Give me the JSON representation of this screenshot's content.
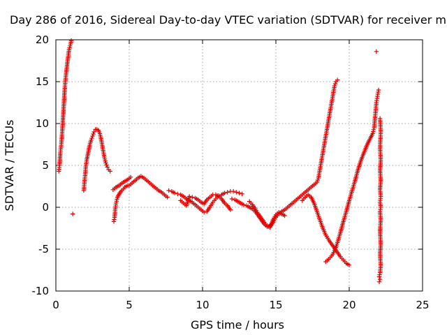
{
  "chart_data": {
    "type": "scatter",
    "title": "Day 286 of 2016, Sidereal Day-to-day VTEC variation (SDTVAR) for receiver m",
    "xlabel": "GPS time / hours",
    "ylabel": "SDTVAR / TECUs",
    "xlim": [
      0,
      25
    ],
    "ylim": [
      -10,
      20
    ],
    "xticks": [
      "0",
      "5",
      "10",
      "15",
      "20",
      "25"
    ],
    "yticks": [
      "-10",
      "-5",
      "0",
      "5",
      "10",
      "15",
      "20"
    ],
    "grid": true,
    "marker": "plus",
    "marker_color": "#e00000",
    "series": [
      {
        "points": [
          [
            0.2,
            4.3
          ],
          [
            0.25,
            5.0
          ],
          [
            0.3,
            6.5
          ],
          [
            0.35,
            7.2
          ],
          [
            0.4,
            8.2
          ],
          [
            0.45,
            9.5
          ],
          [
            0.5,
            11.0
          ],
          [
            0.55,
            12.5
          ],
          [
            0.6,
            14.0
          ],
          [
            0.65,
            15.2
          ],
          [
            0.7,
            16.0
          ],
          [
            0.8,
            17.5
          ],
          [
            0.9,
            18.8
          ],
          [
            1.0,
            19.5
          ],
          [
            1.05,
            19.9
          ]
        ]
      },
      {
        "points": [
          [
            1.15,
            -0.8
          ]
        ]
      },
      {
        "points": [
          [
            1.9,
            2.0
          ],
          [
            1.95,
            3.0
          ],
          [
            2.0,
            4.0
          ],
          [
            2.05,
            5.0
          ],
          [
            2.1,
            5.6
          ],
          [
            2.2,
            6.5
          ],
          [
            2.3,
            7.4
          ],
          [
            2.4,
            8.0
          ],
          [
            2.5,
            8.5
          ],
          [
            2.6,
            9.0
          ],
          [
            2.7,
            9.3
          ],
          [
            2.8,
            9.3
          ],
          [
            2.9,
            9.2
          ],
          [
            3.0,
            8.8
          ],
          [
            3.1,
            8.0
          ],
          [
            3.2,
            7.0
          ],
          [
            3.3,
            6.0
          ],
          [
            3.4,
            5.3
          ],
          [
            3.5,
            4.8
          ],
          [
            3.6,
            4.5
          ],
          [
            3.7,
            4.3
          ]
        ]
      },
      {
        "points": [
          [
            3.95,
            -1.7
          ],
          [
            4.0,
            -1.2
          ],
          [
            4.05,
            -0.2
          ],
          [
            4.1,
            0.5
          ],
          [
            4.2,
            1.2
          ],
          [
            4.35,
            1.7
          ],
          [
            4.5,
            2.0
          ],
          [
            4.7,
            2.4
          ],
          [
            4.9,
            2.6
          ],
          [
            5.0,
            2.6
          ],
          [
            5.2,
            2.9
          ],
          [
            5.4,
            3.2
          ],
          [
            5.6,
            3.5
          ],
          [
            5.8,
            3.7
          ],
          [
            6.0,
            3.5
          ],
          [
            6.2,
            3.2
          ],
          [
            6.4,
            2.9
          ],
          [
            6.6,
            2.6
          ],
          [
            6.8,
            2.3
          ],
          [
            7.0,
            2.0
          ],
          [
            7.2,
            1.8
          ],
          [
            7.4,
            1.5
          ],
          [
            7.6,
            1.2
          ]
        ]
      },
      {
        "points": [
          [
            3.9,
            2.1
          ],
          [
            4.1,
            2.4
          ],
          [
            4.3,
            2.6
          ],
          [
            4.6,
            3.0
          ],
          [
            4.9,
            3.3
          ],
          [
            5.1,
            3.6
          ]
        ]
      },
      {
        "points": [
          [
            7.7,
            2.0
          ],
          [
            7.9,
            1.9
          ],
          [
            8.1,
            1.7
          ],
          [
            8.3,
            1.6
          ],
          [
            8.5,
            1.5
          ],
          [
            8.7,
            1.3
          ],
          [
            8.9,
            1.0
          ],
          [
            9.1,
            0.8
          ],
          [
            9.3,
            0.6
          ],
          [
            9.5,
            0.3
          ],
          [
            9.7,
            0.0
          ],
          [
            9.9,
            -0.3
          ],
          [
            10.1,
            -0.6
          ],
          [
            10.3,
            -0.5
          ],
          [
            10.5,
            0.0
          ],
          [
            10.7,
            0.6
          ],
          [
            10.9,
            1.0
          ],
          [
            11.1,
            1.4
          ],
          [
            11.3,
            1.5
          ],
          [
            11.5,
            1.7
          ],
          [
            11.7,
            1.8
          ],
          [
            11.9,
            1.9
          ],
          [
            12.1,
            1.9
          ],
          [
            12.3,
            1.8
          ],
          [
            12.5,
            1.7
          ],
          [
            12.7,
            1.6
          ]
        ]
      },
      {
        "points": [
          [
            8.5,
            0.8
          ],
          [
            8.7,
            0.5
          ],
          [
            8.9,
            0.2
          ],
          [
            9.1,
            1.3
          ],
          [
            9.3,
            1.2
          ],
          [
            9.5,
            1.1
          ],
          [
            9.7,
            0.9
          ],
          [
            9.9,
            0.6
          ],
          [
            10.1,
            0.4
          ],
          [
            10.3,
            0.9
          ],
          [
            10.5,
            1.2
          ],
          [
            10.7,
            1.5
          ],
          [
            10.9,
            1.5
          ],
          [
            11.1,
            1.3
          ],
          [
            11.3,
            1.0
          ],
          [
            11.5,
            0.5
          ],
          [
            11.7,
            0.2
          ],
          [
            11.9,
            -0.3
          ]
        ]
      },
      {
        "points": [
          [
            12.0,
            1.0
          ],
          [
            12.2,
            0.9
          ],
          [
            12.4,
            0.7
          ],
          [
            12.6,
            0.5
          ],
          [
            12.8,
            0.3
          ],
          [
            13.0,
            0.2
          ],
          [
            13.2,
            0.0
          ],
          [
            13.4,
            -0.2
          ],
          [
            13.6,
            -0.5
          ],
          [
            13.8,
            -1.0
          ],
          [
            14.0,
            -1.5
          ],
          [
            14.2,
            -2.0
          ],
          [
            14.4,
            -2.3
          ],
          [
            14.6,
            -2.3
          ],
          [
            14.8,
            -1.8
          ],
          [
            15.0,
            -1.2
          ],
          [
            15.2,
            -0.8
          ],
          [
            15.4,
            -0.5
          ],
          [
            15.6,
            -0.3
          ],
          [
            15.8,
            0.0
          ],
          [
            16.0,
            0.3
          ],
          [
            16.2,
            0.6
          ],
          [
            16.4,
            0.9
          ],
          [
            16.6,
            1.2
          ],
          [
            16.8,
            1.5
          ],
          [
            17.0,
            1.8
          ],
          [
            17.2,
            2.1
          ],
          [
            17.4,
            2.4
          ],
          [
            17.6,
            2.7
          ],
          [
            17.8,
            3.0
          ],
          [
            17.9,
            3.5
          ],
          [
            18.0,
            4.5
          ],
          [
            18.1,
            5.5
          ],
          [
            18.2,
            6.5
          ],
          [
            18.3,
            7.5
          ],
          [
            18.4,
            8.5
          ],
          [
            18.5,
            9.5
          ],
          [
            18.6,
            10.5
          ],
          [
            18.7,
            11.5
          ],
          [
            18.8,
            12.5
          ],
          [
            18.9,
            13.5
          ],
          [
            19.0,
            14.5
          ],
          [
            19.1,
            15.0
          ],
          [
            19.2,
            15.2
          ]
        ]
      },
      {
        "points": [
          [
            13.2,
            0.7
          ],
          [
            13.4,
            0.3
          ],
          [
            13.6,
            -0.2
          ],
          [
            13.8,
            -0.8
          ],
          [
            14.0,
            -1.3
          ],
          [
            14.2,
            -1.8
          ],
          [
            14.4,
            -2.2
          ],
          [
            14.6,
            -2.4
          ],
          [
            14.8,
            -1.5
          ],
          [
            15.0,
            -0.9
          ],
          [
            15.2,
            -0.6
          ],
          [
            15.4,
            -0.8
          ],
          [
            15.6,
            -1.0
          ]
        ]
      },
      {
        "points": [
          [
            16.8,
            0.8
          ],
          [
            17.0,
            1.2
          ],
          [
            17.2,
            1.5
          ],
          [
            17.4,
            1.2
          ],
          [
            17.6,
            0.5
          ],
          [
            17.8,
            -0.5
          ],
          [
            18.0,
            -1.5
          ],
          [
            18.2,
            -2.5
          ],
          [
            18.4,
            -3.3
          ],
          [
            18.6,
            -3.9
          ],
          [
            18.8,
            -4.4
          ],
          [
            19.0,
            -4.9
          ],
          [
            19.2,
            -5.4
          ],
          [
            19.4,
            -5.9
          ],
          [
            19.6,
            -6.3
          ],
          [
            19.8,
            -6.7
          ],
          [
            20.0,
            -6.9
          ]
        ]
      },
      {
        "points": [
          [
            18.4,
            -6.5
          ],
          [
            18.6,
            -6.2
          ],
          [
            18.8,
            -5.8
          ],
          [
            19.0,
            -5.2
          ],
          [
            19.2,
            -4.2
          ],
          [
            19.4,
            -3.0
          ],
          [
            19.6,
            -1.7
          ],
          [
            19.8,
            -0.5
          ],
          [
            20.0,
            0.8
          ],
          [
            20.2,
            2.0
          ],
          [
            20.4,
            3.2
          ],
          [
            20.6,
            4.5
          ],
          [
            20.8,
            5.6
          ],
          [
            21.0,
            6.5
          ],
          [
            21.2,
            7.4
          ],
          [
            21.4,
            8.1
          ],
          [
            21.6,
            8.8
          ],
          [
            21.7,
            9.5
          ],
          [
            21.75,
            10.5
          ],
          [
            21.8,
            11.5
          ],
          [
            21.85,
            12.5
          ],
          [
            21.9,
            13.0
          ],
          [
            21.95,
            13.5
          ],
          [
            22.0,
            14.0
          ]
        ]
      },
      {
        "points": [
          [
            21.85,
            18.6
          ]
        ]
      },
      {
        "points": [
          [
            22.1,
            10.6
          ],
          [
            22.15,
            9.0
          ],
          [
            22.1,
            7.2
          ],
          [
            22.15,
            5.6
          ],
          [
            22.1,
            4.5
          ],
          [
            22.15,
            3.2
          ],
          [
            22.1,
            2.1
          ],
          [
            22.15,
            1.3
          ],
          [
            22.1,
            0.6
          ],
          [
            22.15,
            0.0
          ],
          [
            22.1,
            -0.5
          ],
          [
            22.15,
            -1.5
          ],
          [
            22.1,
            -2.8
          ],
          [
            22.15,
            -4.5
          ],
          [
            22.1,
            -5.6
          ],
          [
            22.15,
            -7.0
          ],
          [
            22.1,
            -7.8
          ],
          [
            22.05,
            -8.3
          ],
          [
            22.1,
            -8.6
          ],
          [
            22.05,
            -8.9
          ]
        ]
      }
    ]
  }
}
